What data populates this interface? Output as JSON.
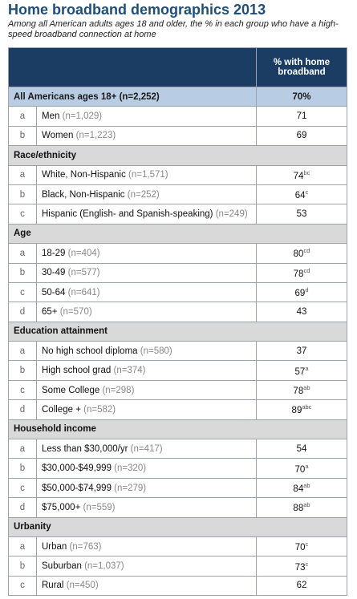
{
  "header": {
    "title": "Home broadband demographics 2013",
    "subtitle": "Among all American adults ages 18 and older, the % in each group who have a high-speed broadband connection at home"
  },
  "table": {
    "column_header": "% with home broadband",
    "overall": {
      "label": "All Americans ages 18+ (n=2,252)",
      "value": "70%"
    },
    "groups": [
      {
        "rows": [
          {
            "letter": "a",
            "label": "Men",
            "n": "(n=1,029)",
            "value": "71"
          },
          {
            "letter": "b",
            "label": "Women",
            "n": "(n=1,223)",
            "value": "69"
          }
        ]
      },
      {
        "title": "Race/ethnicity",
        "rows": [
          {
            "letter": "a",
            "label": "White, Non-Hispanic",
            "n": "(n=1,571)",
            "value": "74",
            "sup": "bc"
          },
          {
            "letter": "b",
            "label": "Black, Non-Hispanic",
            "n": "(n=252)",
            "value": "64",
            "sup": "c"
          },
          {
            "letter": "c",
            "label": "Hispanic (English- and Spanish-speaking)",
            "n": "(n=249)",
            "value": "53"
          }
        ]
      },
      {
        "title": "Age",
        "rows": [
          {
            "letter": "a",
            "label": "18-29",
            "n": "(n=404)",
            "value": "80",
            "sup": "cd"
          },
          {
            "letter": "b",
            "label": "30-49",
            "n": "(n=577)",
            "value": "78",
            "sup": "cd"
          },
          {
            "letter": "c",
            "label": "50-64",
            "n": "(n=641)",
            "value": "69",
            "sup": "d"
          },
          {
            "letter": "d",
            "label": "65+",
            "n": "(n=570)",
            "value": "43"
          }
        ]
      },
      {
        "title": "Education attainment",
        "rows": [
          {
            "letter": "a",
            "label": "No high school diploma",
            "n": "(n=580)",
            "value": "37"
          },
          {
            "letter": "b",
            "label": "High school grad",
            "n": "(n=374)",
            "value": "57",
            "sup": "a"
          },
          {
            "letter": "c",
            "label": "Some College",
            "n": "(n=298)",
            "value": "78",
            "sup": "ab"
          },
          {
            "letter": "d",
            "label": "College +",
            "n": "(n=582)",
            "value": "89",
            "sup": "abc"
          }
        ]
      },
      {
        "title": "Household income",
        "rows": [
          {
            "letter": "a",
            "label": "Less than $30,000/yr",
            "n": "(n=417)",
            "value": "54"
          },
          {
            "letter": "b",
            "label": "$30,000-$49,999",
            "n": "(n=320)",
            "value": "70",
            "sup": "a"
          },
          {
            "letter": "c",
            "label": "$50,000-$74,999",
            "n": "(n=279)",
            "value": "84",
            "sup": "ab"
          },
          {
            "letter": "d",
            "label": "$75,000+",
            "n": "(n=559)",
            "value": "88",
            "sup": "ab"
          }
        ]
      },
      {
        "title": "Urbanity",
        "rows": [
          {
            "letter": "a",
            "label": "Urban",
            "n": "(n=763)",
            "value": "70",
            "sup": "c"
          },
          {
            "letter": "b",
            "label": "Suburban",
            "n": "(n=1,037)",
            "value": "73",
            "sup": "c"
          },
          {
            "letter": "c",
            "label": "Rural",
            "n": "(n=450)",
            "value": "62"
          }
        ]
      }
    ]
  }
}
